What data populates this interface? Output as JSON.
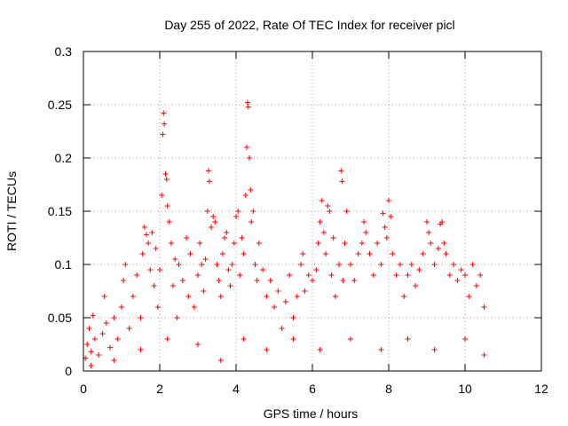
{
  "chart_data": {
    "type": "scatter",
    "title": "Day 255 of 2022, Rate Of TEC Index for receiver picl",
    "xlabel": "GPS time / hours",
    "ylabel": "ROTI / TECUs",
    "xlim": [
      0,
      12
    ],
    "ylim": [
      0,
      0.3
    ],
    "x_ticks": [
      "0",
      "2",
      "4",
      "6",
      "8",
      "10",
      "12"
    ],
    "y_ticks": [
      "0",
      "0.05",
      "0.1",
      "0.15",
      "0.2",
      "0.25",
      "0.3"
    ],
    "grid": true,
    "marker": "+",
    "color": "#ff0000",
    "series": [
      {
        "points": [
          [
            0.05,
            0.012
          ],
          [
            0.1,
            0.025
          ],
          [
            0.15,
            0.04
          ],
          [
            0.2,
            0.018
          ],
          [
            0.25,
            0.052
          ],
          [
            0.3,
            0.03
          ],
          [
            0.4,
            0.015
          ],
          [
            0.5,
            0.035
          ],
          [
            0.55,
            0.07
          ],
          [
            0.6,
            0.045
          ],
          [
            0.7,
            0.022
          ],
          [
            0.8,
            0.05
          ],
          [
            0.9,
            0.03
          ],
          [
            1.0,
            0.06
          ],
          [
            1.05,
            0.085
          ],
          [
            1.1,
            0.1
          ],
          [
            1.2,
            0.04
          ],
          [
            1.3,
            0.07
          ],
          [
            1.4,
            0.09
          ],
          [
            1.5,
            0.05
          ],
          [
            1.55,
            0.11
          ],
          [
            1.6,
            0.135
          ],
          [
            1.65,
            0.128
          ],
          [
            1.7,
            0.12
          ],
          [
            1.75,
            0.095
          ],
          [
            1.8,
            0.13
          ],
          [
            1.85,
            0.08
          ],
          [
            1.9,
            0.115
          ],
          [
            1.95,
            0.06
          ],
          [
            2.0,
            0.095
          ],
          [
            2.05,
            0.165
          ],
          [
            2.08,
            0.222
          ],
          [
            2.1,
            0.242
          ],
          [
            2.12,
            0.232
          ],
          [
            2.15,
            0.185
          ],
          [
            2.18,
            0.18
          ],
          [
            2.2,
            0.155
          ],
          [
            2.25,
            0.14
          ],
          [
            2.3,
            0.12
          ],
          [
            2.35,
            0.08
          ],
          [
            2.4,
            0.105
          ],
          [
            2.45,
            0.05
          ],
          [
            2.5,
            0.1
          ],
          [
            2.6,
            0.085
          ],
          [
            2.7,
            0.125
          ],
          [
            2.75,
            0.07
          ],
          [
            2.8,
            0.11
          ],
          [
            2.9,
            0.06
          ],
          [
            3.0,
            0.09
          ],
          [
            3.05,
            0.12
          ],
          [
            3.1,
            0.1
          ],
          [
            3.15,
            0.075
          ],
          [
            3.2,
            0.105
          ],
          [
            3.25,
            0.15
          ],
          [
            3.28,
            0.188
          ],
          [
            3.3,
            0.178
          ],
          [
            3.35,
            0.135
          ],
          [
            3.4,
            0.145
          ],
          [
            3.45,
            0.14
          ],
          [
            3.5,
            0.1
          ],
          [
            3.55,
            0.085
          ],
          [
            3.6,
            0.07
          ],
          [
            3.65,
            0.11
          ],
          [
            3.7,
            0.125
          ],
          [
            3.75,
            0.13
          ],
          [
            3.8,
            0.095
          ],
          [
            3.85,
            0.08
          ],
          [
            3.9,
            0.1
          ],
          [
            3.95,
            0.12
          ],
          [
            4.0,
            0.145
          ],
          [
            4.05,
            0.15
          ],
          [
            4.1,
            0.09
          ],
          [
            4.15,
            0.125
          ],
          [
            4.2,
            0.11
          ],
          [
            4.25,
            0.165
          ],
          [
            4.28,
            0.21
          ],
          [
            4.3,
            0.252
          ],
          [
            4.32,
            0.248
          ],
          [
            4.35,
            0.2
          ],
          [
            4.38,
            0.17
          ],
          [
            4.4,
            0.14
          ],
          [
            4.45,
            0.15
          ],
          [
            4.5,
            0.1
          ],
          [
            4.55,
            0.085
          ],
          [
            4.6,
            0.12
          ],
          [
            4.7,
            0.095
          ],
          [
            4.8,
            0.07
          ],
          [
            4.9,
            0.085
          ],
          [
            5.0,
            0.06
          ],
          [
            5.1,
            0.075
          ],
          [
            5.2,
            0.04
          ],
          [
            5.3,
            0.065
          ],
          [
            5.4,
            0.09
          ],
          [
            5.5,
            0.05
          ],
          [
            5.6,
            0.07
          ],
          [
            5.7,
            0.1
          ],
          [
            5.75,
            0.11
          ],
          [
            5.8,
            0.075
          ],
          [
            5.9,
            0.09
          ],
          [
            6.0,
            0.085
          ],
          [
            6.1,
            0.095
          ],
          [
            6.15,
            0.12
          ],
          [
            6.2,
            0.14
          ],
          [
            6.25,
            0.16
          ],
          [
            6.3,
            0.13
          ],
          [
            6.35,
            0.11
          ],
          [
            6.4,
            0.155
          ],
          [
            6.45,
            0.15
          ],
          [
            6.5,
            0.09
          ],
          [
            6.55,
            0.125
          ],
          [
            6.6,
            0.07
          ],
          [
            6.7,
            0.1
          ],
          [
            6.75,
            0.188
          ],
          [
            6.78,
            0.178
          ],
          [
            6.8,
            0.085
          ],
          [
            6.85,
            0.12
          ],
          [
            6.9,
            0.15
          ],
          [
            7.0,
            0.1
          ],
          [
            7.1,
            0.085
          ],
          [
            7.2,
            0.11
          ],
          [
            7.3,
            0.12
          ],
          [
            7.35,
            0.14
          ],
          [
            7.4,
            0.13
          ],
          [
            7.5,
            0.11
          ],
          [
            7.6,
            0.09
          ],
          [
            7.7,
            0.12
          ],
          [
            7.8,
            0.1
          ],
          [
            7.85,
            0.148
          ],
          [
            7.9,
            0.135
          ],
          [
            7.95,
            0.125
          ],
          [
            8.0,
            0.16
          ],
          [
            8.05,
            0.145
          ],
          [
            8.1,
            0.11
          ],
          [
            8.2,
            0.09
          ],
          [
            8.3,
            0.1
          ],
          [
            8.4,
            0.07
          ],
          [
            8.5,
            0.09
          ],
          [
            8.6,
            0.1
          ],
          [
            8.7,
            0.08
          ],
          [
            8.8,
            0.095
          ],
          [
            8.9,
            0.11
          ],
          [
            9.0,
            0.14
          ],
          [
            9.05,
            0.13
          ],
          [
            9.1,
            0.12
          ],
          [
            9.2,
            0.1
          ],
          [
            9.3,
            0.115
          ],
          [
            9.35,
            0.138
          ],
          [
            9.4,
            0.14
          ],
          [
            9.45,
            0.12
          ],
          [
            9.5,
            0.11
          ],
          [
            9.6,
            0.09
          ],
          [
            9.7,
            0.1
          ],
          [
            9.8,
            0.085
          ],
          [
            9.9,
            0.095
          ],
          [
            10.0,
            0.09
          ],
          [
            10.1,
            0.07
          ],
          [
            10.2,
            0.1
          ],
          [
            10.3,
            0.08
          ],
          [
            10.4,
            0.09
          ],
          [
            10.5,
            0.06
          ],
          [
            0.2,
            0.005
          ],
          [
            0.8,
            0.01
          ],
          [
            1.5,
            0.02
          ],
          [
            2.2,
            0.03
          ],
          [
            3.0,
            0.025
          ],
          [
            3.6,
            0.01
          ],
          [
            4.2,
            0.03
          ],
          [
            4.8,
            0.02
          ],
          [
            5.5,
            0.03
          ],
          [
            6.2,
            0.02
          ],
          [
            7.0,
            0.03
          ],
          [
            7.8,
            0.02
          ],
          [
            8.5,
            0.03
          ],
          [
            9.2,
            0.02
          ],
          [
            10.0,
            0.03
          ],
          [
            10.5,
            0.015
          ]
        ]
      }
    ]
  }
}
